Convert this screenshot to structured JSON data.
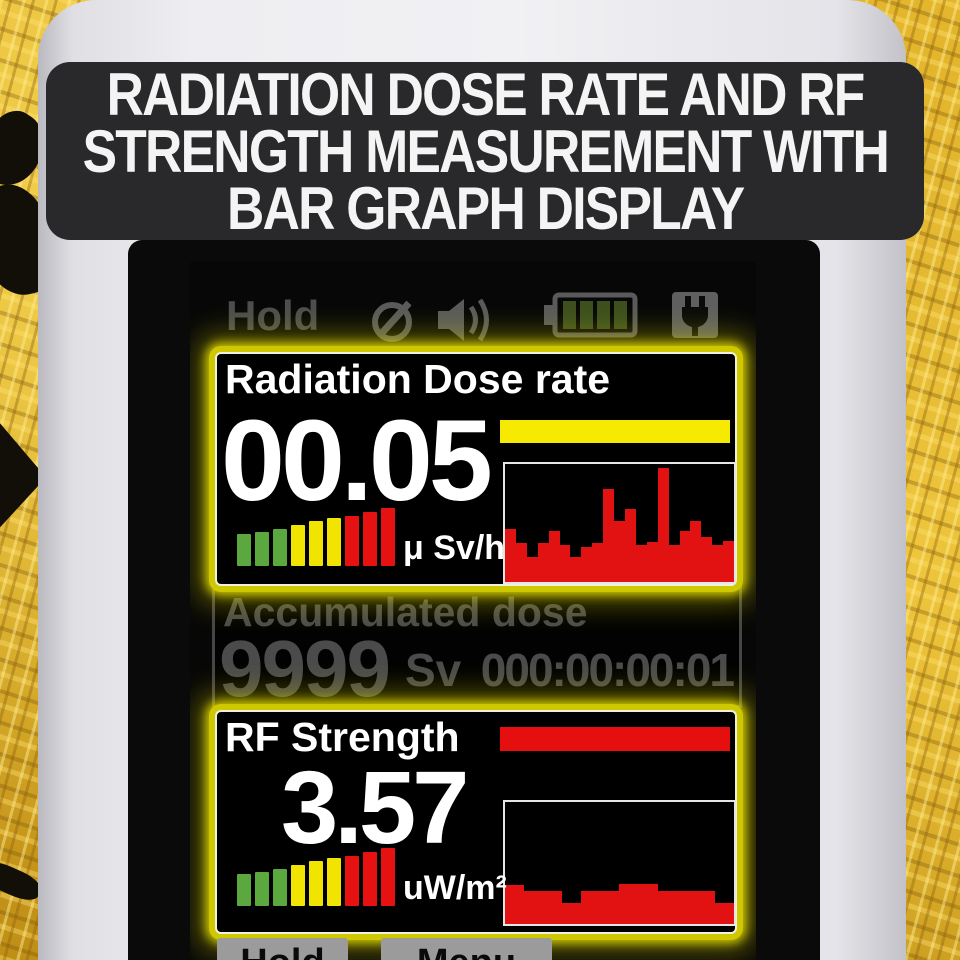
{
  "banner": {
    "lines": [
      "RADIATION DOSE RATE AND RF",
      "STRENGTH MEASUREMENT WITH",
      "BAR GRAPH DISPLAY"
    ]
  },
  "status_bar": {
    "hold_label": "Hold",
    "battery_level": "4/4"
  },
  "radiation_panel": {
    "title": "Radiation Dose rate",
    "value": "00.05",
    "unit": "μ Sv/h",
    "level_bars": {
      "heights": [
        32,
        34,
        37,
        41,
        45,
        48,
        50,
        54,
        58
      ],
      "colors": [
        "green",
        "green",
        "green",
        "yellow",
        "yellow",
        "yellow",
        "red",
        "red",
        "red"
      ]
    }
  },
  "accumulated_panel": {
    "title": "Accumulated dose",
    "value": "9999",
    "unit": "Sv",
    "elapsed_time": "000:00:00:01"
  },
  "rf_panel": {
    "title": "RF Strength",
    "value": "3.57",
    "unit": "uW/m²",
    "level_bars": {
      "heights": [
        32,
        34,
        37,
        41,
        45,
        48,
        50,
        54,
        58
      ],
      "colors": [
        "green",
        "green",
        "green",
        "yellow",
        "yellow",
        "yellow",
        "red",
        "red",
        "red"
      ]
    }
  },
  "bottom_buttons": {
    "hold_label": "Hold",
    "menu_label": "Menu"
  },
  "colors": {
    "green": "#5aa83e",
    "yellow": "#f0e400",
    "red": "#e61212",
    "histogram_red": "#e21212",
    "glow_yellow": "#ded800",
    "dim_gray": "#4b4b4b"
  },
  "chart_data": [
    {
      "id": "radiation-dose-history",
      "type": "bar",
      "title": "Radiation Dose rate bar graph",
      "values_normalized": [
        0.45,
        0.33,
        0.21,
        0.33,
        0.43,
        0.31,
        0.21,
        0.3,
        0.33,
        0.79,
        0.52,
        0.62,
        0.31,
        0.34,
        0.97,
        0.31,
        0.43,
        0.52,
        0.38,
        0.31,
        0.35
      ],
      "ylim": [
        0,
        1
      ],
      "color": "#e21212"
    },
    {
      "id": "rf-strength-history",
      "type": "bar",
      "title": "RF Strength bar graph",
      "values_normalized": [
        0.32,
        0.27,
        0.27,
        0.17,
        0.27,
        0.27,
        0.33,
        0.33,
        0.27,
        0.27,
        0.27,
        0.17
      ],
      "ylim": [
        0,
        1
      ],
      "color": "#e21212"
    }
  ]
}
